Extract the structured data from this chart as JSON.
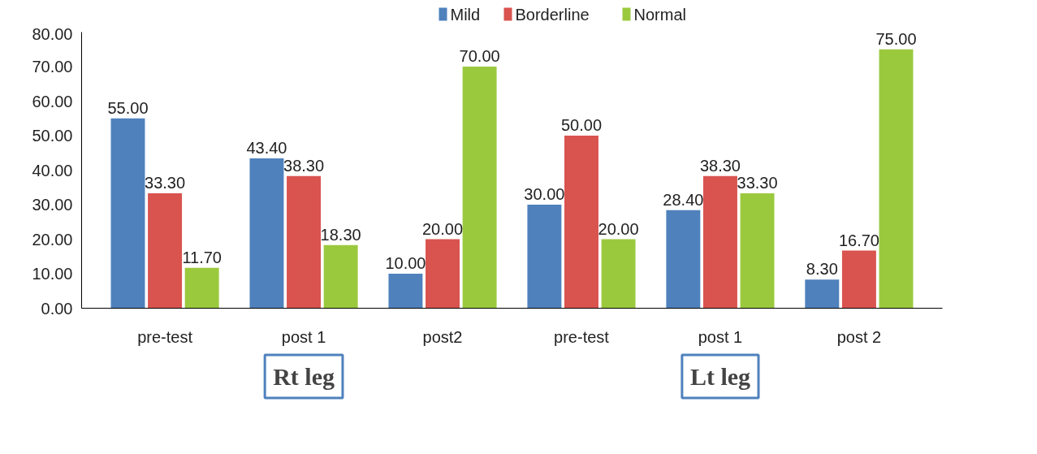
{
  "chart_data": {
    "type": "bar",
    "categories": [
      "pre-test",
      "post 1",
      "post2",
      "pre-test",
      "post 1",
      "post 2"
    ],
    "series": [
      {
        "name": "Mild",
        "color": "#4f81bd",
        "values": [
          55,
          43.4,
          10,
          30,
          28.4,
          8.3
        ],
        "value_labels": [
          "55.00",
          "43.40",
          "10.00",
          "30.00",
          "28.40",
          "8.30"
        ]
      },
      {
        "name": "Borderline",
        "color": "#d9534f",
        "values": [
          33.3,
          38.3,
          20,
          50,
          38.3,
          16.7
        ],
        "value_labels": [
          "33.30",
          "38.30",
          "20.00",
          "50.00",
          "38.30",
          "16.70"
        ]
      },
      {
        "name": "Normal",
        "color": "#9bc93e",
        "values": [
          11.7,
          18.3,
          70,
          20,
          33.3,
          75
        ],
        "value_labels": [
          "11.70",
          "18.30",
          "70.00",
          "20.00",
          "33.30",
          "75.00"
        ]
      }
    ],
    "ylim": [
      0,
      80
    ],
    "yticks": [
      {
        "value": 0,
        "label": "0.00"
      },
      {
        "value": 10,
        "label": "10.00"
      },
      {
        "value": 20,
        "label": "20.00"
      },
      {
        "value": 30,
        "label": "30.00"
      },
      {
        "value": 40,
        "label": "40.00"
      },
      {
        "value": 50,
        "label": "50.00"
      },
      {
        "value": 60,
        "label": "60.00"
      },
      {
        "value": 70,
        "label": "70.00"
      },
      {
        "value": 80,
        "label": "80.00"
      }
    ],
    "annotations": [
      "Rt leg",
      "Lt leg"
    ],
    "legend": "top",
    "grid": false
  }
}
